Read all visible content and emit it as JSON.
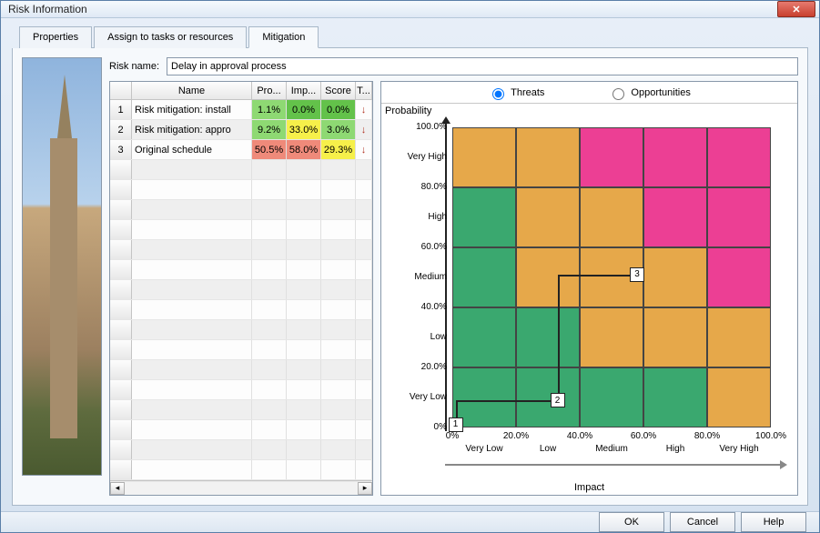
{
  "window": {
    "title": "Risk Information"
  },
  "tabs": {
    "properties": "Properties",
    "assign": "Assign to tasks or resources",
    "mitigation": "Mitigation",
    "active": "mitigation"
  },
  "risk_name": {
    "label": "Risk name:",
    "value": "Delay in approval process"
  },
  "grid": {
    "columns": {
      "name": "Name",
      "pro": "Pro...",
      "imp": "Imp...",
      "score": "Score",
      "t": "T..."
    },
    "rows": [
      {
        "num": "1",
        "name": "Risk mitigation: install",
        "pro": "1.1%",
        "imp": "0.0%",
        "score": "0.0%",
        "pro_color": "#8ed973",
        "imp_color": "#63c24a",
        "score_color": "#63c24a"
      },
      {
        "num": "2",
        "name": "Risk mitigation: appro",
        "pro": "9.2%",
        "imp": "33.0%",
        "score": "3.0%",
        "pro_color": "#8ed973",
        "imp_color": "#f6f04a",
        "score_color": "#8ed973"
      },
      {
        "num": "3",
        "name": "Original schedule",
        "pro": "50.5%",
        "imp": "58.0%",
        "score": "29.3%",
        "pro_color": "#ef8a7a",
        "imp_color": "#ef8a7a",
        "score_color": "#f6f04a"
      }
    ],
    "empty_rows": 16
  },
  "chart": {
    "radios": {
      "threats": "Threats",
      "opportunities": "Opportunities",
      "selected": "threats"
    },
    "y_axis_label": "Probability",
    "x_axis_label": "Impact",
    "y_ticks": [
      "100.0%",
      "80.0%",
      "60.0%",
      "40.0%",
      "20.0%",
      "0%"
    ],
    "y_categories": [
      "Very High",
      "High",
      "Medium",
      "Low",
      "Very Low"
    ],
    "x_ticks": [
      "0%",
      "20.0%",
      "40.0%",
      "60.0%",
      "80.0%",
      "100.0%"
    ],
    "x_categories": [
      "Very Low",
      "Low",
      "Medium",
      "High",
      "Very High"
    ],
    "colors": {
      "green": "#3aa86f",
      "amber": "#e6a84a",
      "pink": "#ec3f94"
    },
    "matrix_colors": [
      [
        "amber",
        "amber",
        "pink",
        "pink",
        "pink"
      ],
      [
        "green",
        "amber",
        "amber",
        "pink",
        "pink"
      ],
      [
        "green",
        "amber",
        "amber",
        "amber",
        "pink"
      ],
      [
        "green",
        "green",
        "amber",
        "amber",
        "amber"
      ],
      [
        "green",
        "green",
        "green",
        "green",
        "amber"
      ]
    ],
    "markers": [
      {
        "id": "1",
        "col": 0.05,
        "row": 4.95
      },
      {
        "id": "2",
        "col": 1.65,
        "row": 4.55
      },
      {
        "id": "3",
        "col": 2.9,
        "row": 2.45
      }
    ]
  },
  "footer": {
    "ok": "OK",
    "cancel": "Cancel",
    "help": "Help"
  }
}
